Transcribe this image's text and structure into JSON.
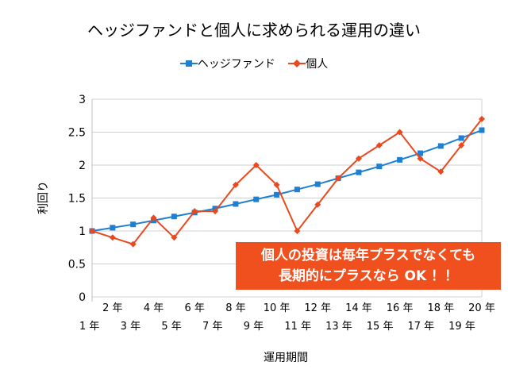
{
  "chart_data": {
    "type": "line",
    "title": "ヘッジファンドと個人に求められる運用の違い",
    "xlabel": "運用期間",
    "ylabel": "利回り",
    "categories": [
      "1 年",
      "2 年",
      "3 年",
      "4 年",
      "5 年",
      "6 年",
      "7 年",
      "8 年",
      "9 年",
      "10 年",
      "11 年",
      "12 年",
      "13 年",
      "14 年",
      "15 年",
      "16 年",
      "17 年",
      "18 年",
      "19 年",
      "20 年"
    ],
    "ylim": [
      0,
      3
    ],
    "yticks": [
      "0",
      "0.5",
      "1",
      "1.5",
      "2",
      "2.5",
      "3"
    ],
    "grid": true,
    "legend": "top",
    "series": [
      {
        "name": "ヘッジファンド",
        "color": "#1f7fd0",
        "marker": "square",
        "values": [
          1.0,
          1.05,
          1.1,
          1.16,
          1.22,
          1.28,
          1.34,
          1.41,
          1.48,
          1.55,
          1.63,
          1.71,
          1.8,
          1.89,
          1.98,
          2.08,
          2.18,
          2.29,
          2.41,
          2.53
        ]
      },
      {
        "name": "個人",
        "color": "#e8491e",
        "marker": "diamond",
        "values": [
          1.0,
          0.9,
          0.8,
          1.2,
          0.9,
          1.3,
          1.3,
          1.7,
          2.0,
          1.7,
          1.0,
          1.4,
          1.8,
          2.1,
          2.3,
          2.5,
          2.1,
          1.9,
          2.3,
          2.7
        ]
      }
    ],
    "annotation": [
      "個人の投資は毎年プラスでなくても",
      "長期的にプラスなら OK ！！"
    ]
  }
}
